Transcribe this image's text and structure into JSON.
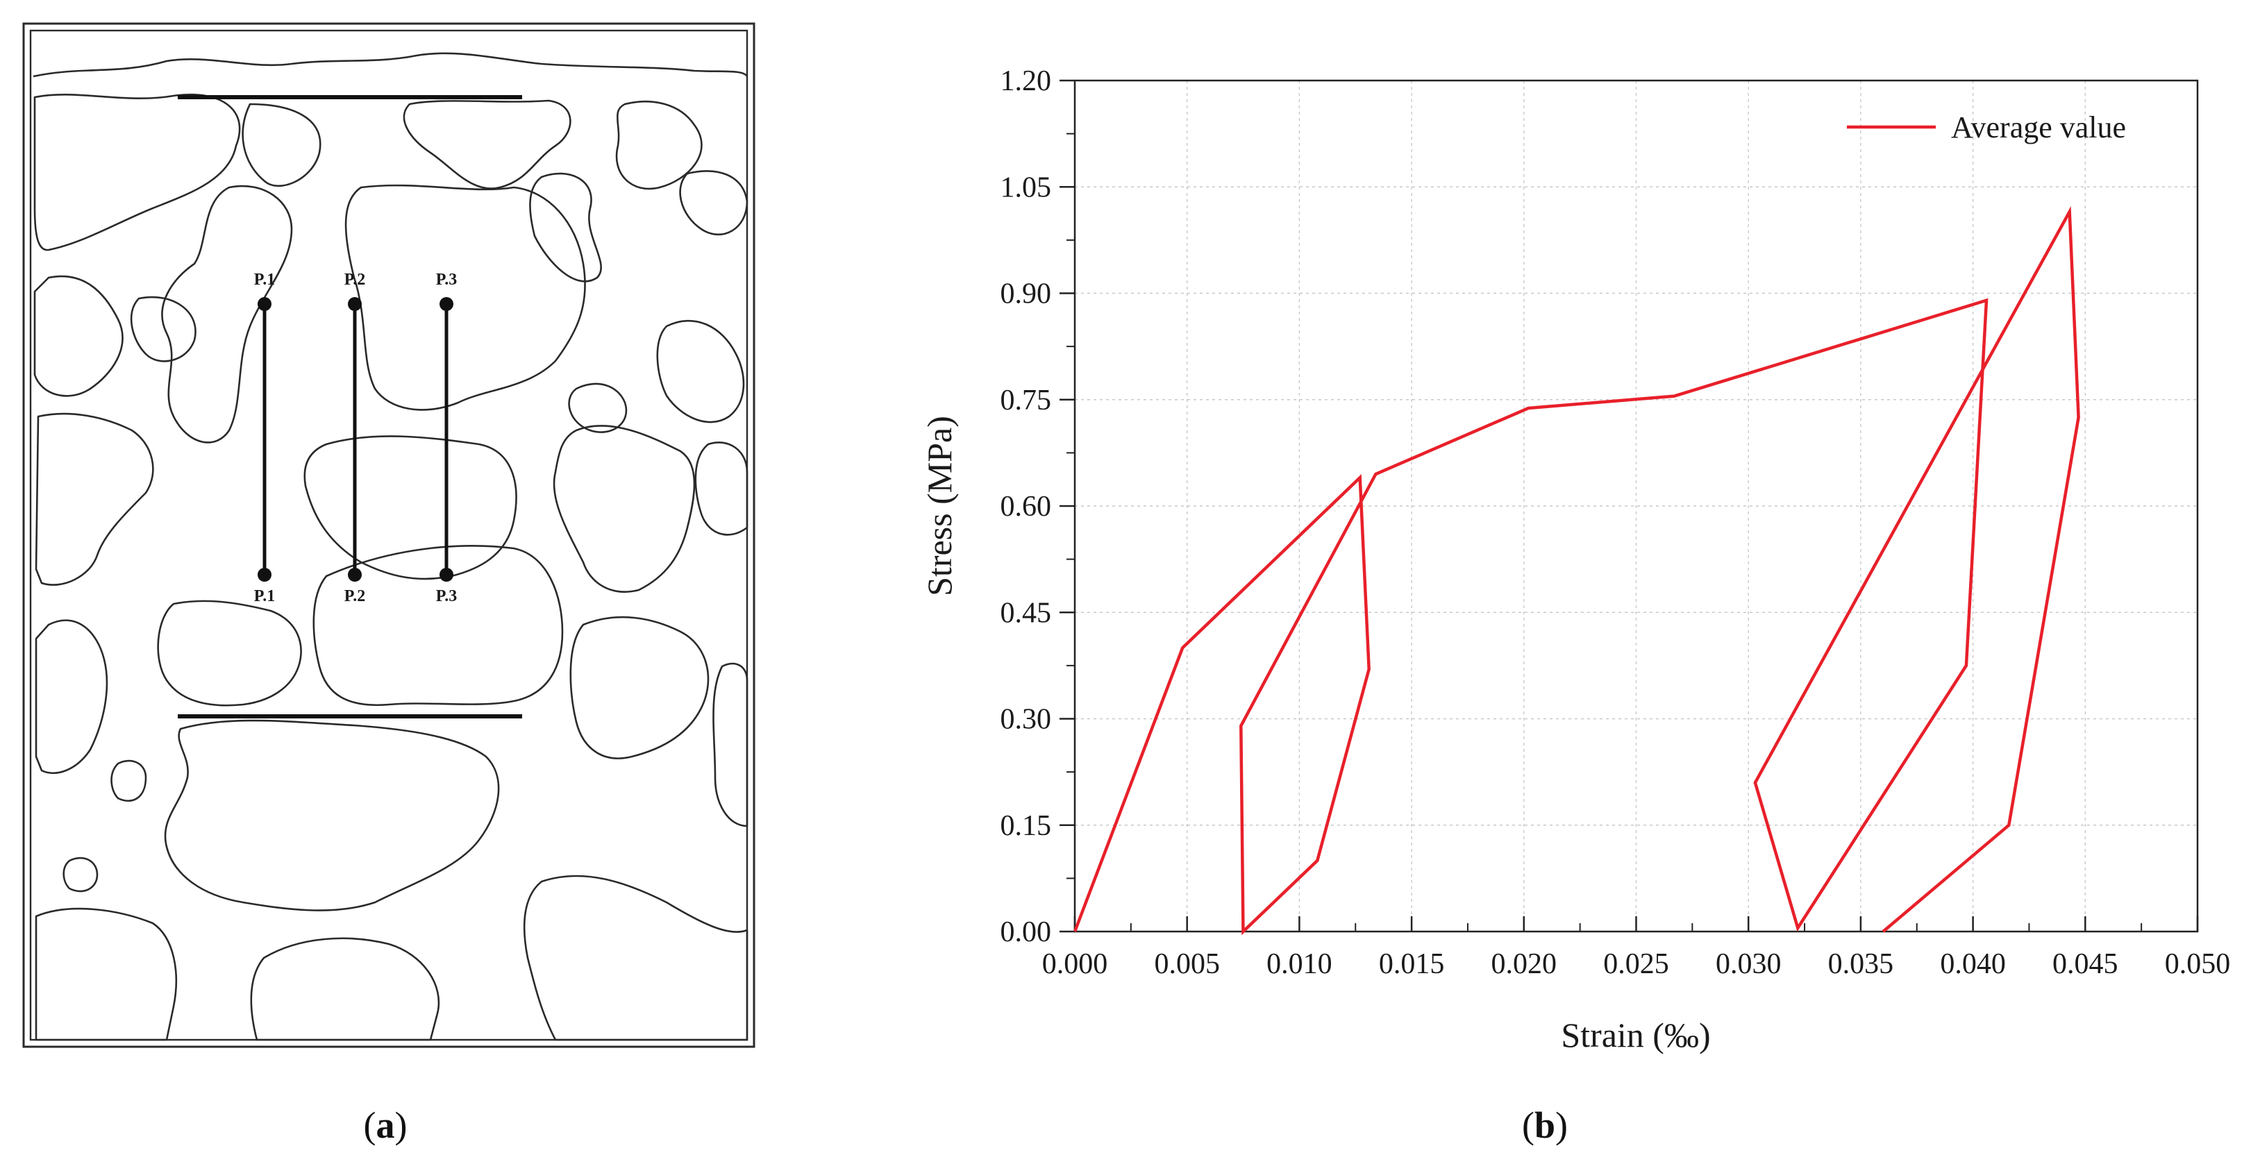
{
  "panel_a": {
    "caption": "(a)",
    "caption_letter": "a",
    "points_top": [
      "P.1",
      "P.2",
      "P.3"
    ],
    "points_bottom": [
      "P.1",
      "P.2",
      "P.3"
    ]
  },
  "panel_b": {
    "caption": "(b)",
    "caption_letter": "b"
  },
  "chart_data": {
    "type": "line",
    "title": "",
    "xlabel": "Strain (‰)",
    "ylabel": "Stress (MPa)",
    "xlim": [
      0,
      0.05
    ],
    "ylim": [
      0,
      1.2
    ],
    "x_ticks": [
      "0.000",
      "0.005",
      "0.010",
      "0.015",
      "0.020",
      "0.025",
      "0.030",
      "0.035",
      "0.040",
      "0.045",
      "0.050"
    ],
    "y_ticks": [
      "0.00",
      "0.15",
      "0.30",
      "0.45",
      "0.60",
      "0.75",
      "0.90",
      "1.05",
      "1.20"
    ],
    "grid": true,
    "legend_position": "top-right",
    "series": [
      {
        "name": "Average value",
        "color": "#e8202a",
        "x": [
          0.0,
          0.0048,
          0.0127,
          0.0131,
          0.0108,
          0.0075,
          0.0074,
          0.0134,
          0.0202,
          0.0267,
          0.0406,
          0.0397,
          0.0322,
          0.0303,
          0.0443,
          0.0447,
          0.0416,
          0.036
        ],
        "y": [
          0.0,
          0.4,
          0.64,
          0.37,
          0.1,
          0.0,
          0.29,
          0.645,
          0.738,
          0.755,
          0.89,
          0.375,
          0.005,
          0.21,
          1.015,
          0.725,
          0.15,
          0.0
        ]
      }
    ]
  }
}
